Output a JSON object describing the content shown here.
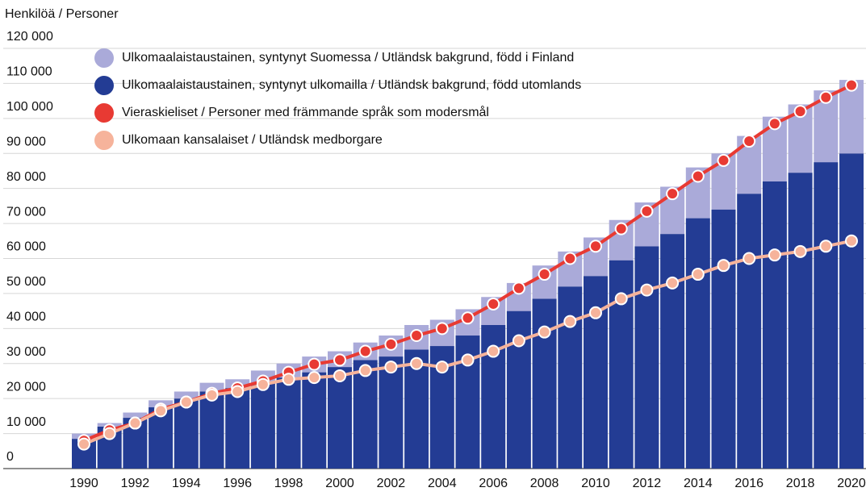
{
  "chart_data": {
    "type": "bar",
    "stacked": true,
    "y_label": "Henkilöä / Personer",
    "categories": [
      "1990",
      null,
      "1992",
      null,
      "1994",
      null,
      "1996",
      null,
      "1998",
      null,
      "2000",
      null,
      "2002",
      null,
      "2004",
      null,
      "2006",
      null,
      "2008",
      null,
      "2010",
      null,
      "2012",
      null,
      "2014",
      null,
      "2016",
      null,
      "2018",
      null,
      "2020"
    ],
    "ylim": [
      0,
      120000
    ],
    "yticks": [
      0,
      {
        "value": 10000,
        "label": "10 000"
      },
      {
        "value": 20000,
        "label": "20 000"
      },
      {
        "value": 30000,
        "label": "30 000"
      },
      {
        "value": 40000,
        "label": "40 000"
      },
      {
        "value": 50000,
        "label": "50 000"
      },
      {
        "value": 60000,
        "label": "60 000"
      },
      {
        "value": 70000,
        "label": "70 000"
      },
      {
        "value": 80000,
        "label": "80 000"
      },
      {
        "value": 90000,
        "label": "90 000"
      },
      {
        "value": 100000,
        "label": "100 000"
      },
      {
        "value": 110000,
        "label": "110 000"
      },
      {
        "value": 120000,
        "label": "120 000"
      }
    ],
    "grid": true,
    "legend": "top-left",
    "series": [
      {
        "name": "Ulkomaalaistaustainen, syntynyt Suomessa / Utländsk bakgrund, född i Finland",
        "type": "bar",
        "color": "#aaaad9",
        "values": [
          1500,
          1000,
          1500,
          2000,
          2000,
          2500,
          2500,
          3500,
          4000,
          4500,
          4500,
          5000,
          6000,
          7000,
          7500,
          7500,
          8000,
          8000,
          9500,
          10000,
          11000,
          11500,
          12500,
          13500,
          14500,
          16000,
          16500,
          18500,
          19500,
          20500,
          21000
        ]
      },
      {
        "name": "Ulkomaalaistaustainen, syntynyt ulkomailla / Utländsk bakgrund, född utomlands",
        "type": "bar",
        "color": "#233c94",
        "values": [
          8500,
          12000,
          14500,
          17500,
          20000,
          22000,
          23000,
          24500,
          26000,
          27500,
          29000,
          31000,
          32000,
          34000,
          35000,
          38000,
          41000,
          45000,
          48500,
          52000,
          55000,
          59500,
          63500,
          67000,
          71500,
          74000,
          78500,
          82000,
          84500,
          87500,
          90000
        ]
      },
      {
        "name": "Vieraskieliset / Personer med främmande språk som modersmål",
        "type": "line",
        "color": "#e83a33",
        "values": [
          8000,
          11000,
          13000,
          17000,
          19000,
          21500,
          23000,
          25000,
          27500,
          29800,
          31000,
          33500,
          35500,
          38000,
          40000,
          43000,
          47000,
          51500,
          55500,
          60000,
          63500,
          68500,
          73500,
          78500,
          83500,
          88000,
          93500,
          98500,
          102000,
          106000,
          109500
        ]
      },
      {
        "name": "Ulkomaan kansalaiset / Utländsk medborgare",
        "type": "line",
        "color": "#f6b39b",
        "values": [
          7000,
          10000,
          13000,
          16500,
          19000,
          21000,
          22000,
          24000,
          25500,
          26000,
          26500,
          28000,
          29000,
          30000,
          29000,
          31000,
          33500,
          36500,
          39000,
          42000,
          44500,
          48500,
          51000,
          53000,
          55500,
          58000,
          60000,
          61000,
          62000,
          63500,
          65000
        ]
      }
    ]
  }
}
